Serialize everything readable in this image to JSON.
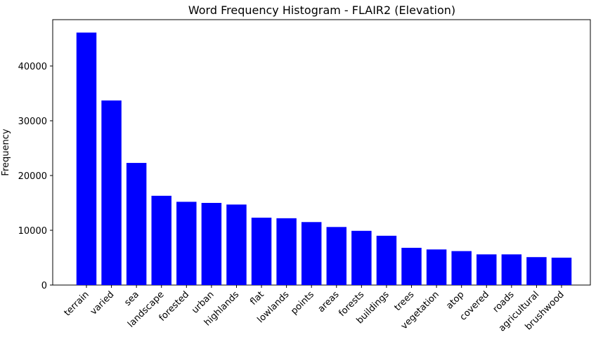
{
  "chart_data": {
    "type": "bar",
    "title": "Word Frequency Histogram - FLAIR2 (Elevation)",
    "y_label": "Frequency",
    "categories": [
      "terrain",
      "varied",
      "sea",
      "landscape",
      "forested",
      "urban",
      "highlands",
      "flat",
      "lowlands",
      "points",
      "areas",
      "forests",
      "buildings",
      "trees",
      "vegetation",
      "atop",
      "covered",
      "roads",
      "agricultural",
      "brushwood"
    ],
    "values": [
      46100,
      33700,
      22300,
      16300,
      15200,
      15000,
      14700,
      12300,
      12200,
      11500,
      10600,
      9900,
      9000,
      6800,
      6500,
      6200,
      5600,
      5600,
      5100,
      5000
    ],
    "color": "#0000ff",
    "ylim": [
      0,
      48460
    ],
    "yticks": [
      0,
      10000,
      20000,
      30000,
      40000
    ],
    "grid": false
  }
}
